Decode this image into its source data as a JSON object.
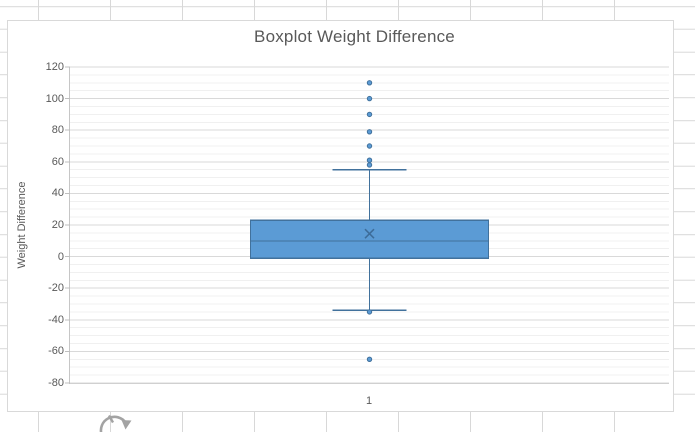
{
  "chart": {
    "title": "Boxplot Weight Difference",
    "y_axis_title": "Weight Difference",
    "x_category_label": "1"
  },
  "colors": {
    "series_fill": "#5B9BD5",
    "series_line": "#41719C",
    "grid_major": "#D9D9D9",
    "grid_minor": "#F0F0F0",
    "axis_line": "#BFBFBF",
    "text": "#595959",
    "sheet_gridline": "#D8D8D8",
    "rotate_icon": "#A3A3A3"
  },
  "chart_data": {
    "type": "boxplot",
    "title": "Boxplot Weight Difference",
    "xlabel": "",
    "ylabel": "Weight Difference",
    "categories": [
      "1"
    ],
    "ylim": [
      -80,
      120
    ],
    "y_major_unit": 20,
    "y_minor_unit": 5,
    "y_tick_labels": [
      "120",
      "100",
      "80",
      "60",
      "40",
      "20",
      "0",
      "-20",
      "-40",
      "-60",
      "-80"
    ],
    "grid": "major+minor horizontal gridlines, legend none",
    "series": [
      {
        "name": "Weight Difference",
        "q1": -1,
        "median": 10,
        "q3": 23,
        "mean": 14.5,
        "whisker_low": -34,
        "whisker_high": 55,
        "outliers": [
          110,
          100,
          90,
          79,
          70,
          61,
          58,
          -35,
          -65
        ]
      }
    ]
  }
}
